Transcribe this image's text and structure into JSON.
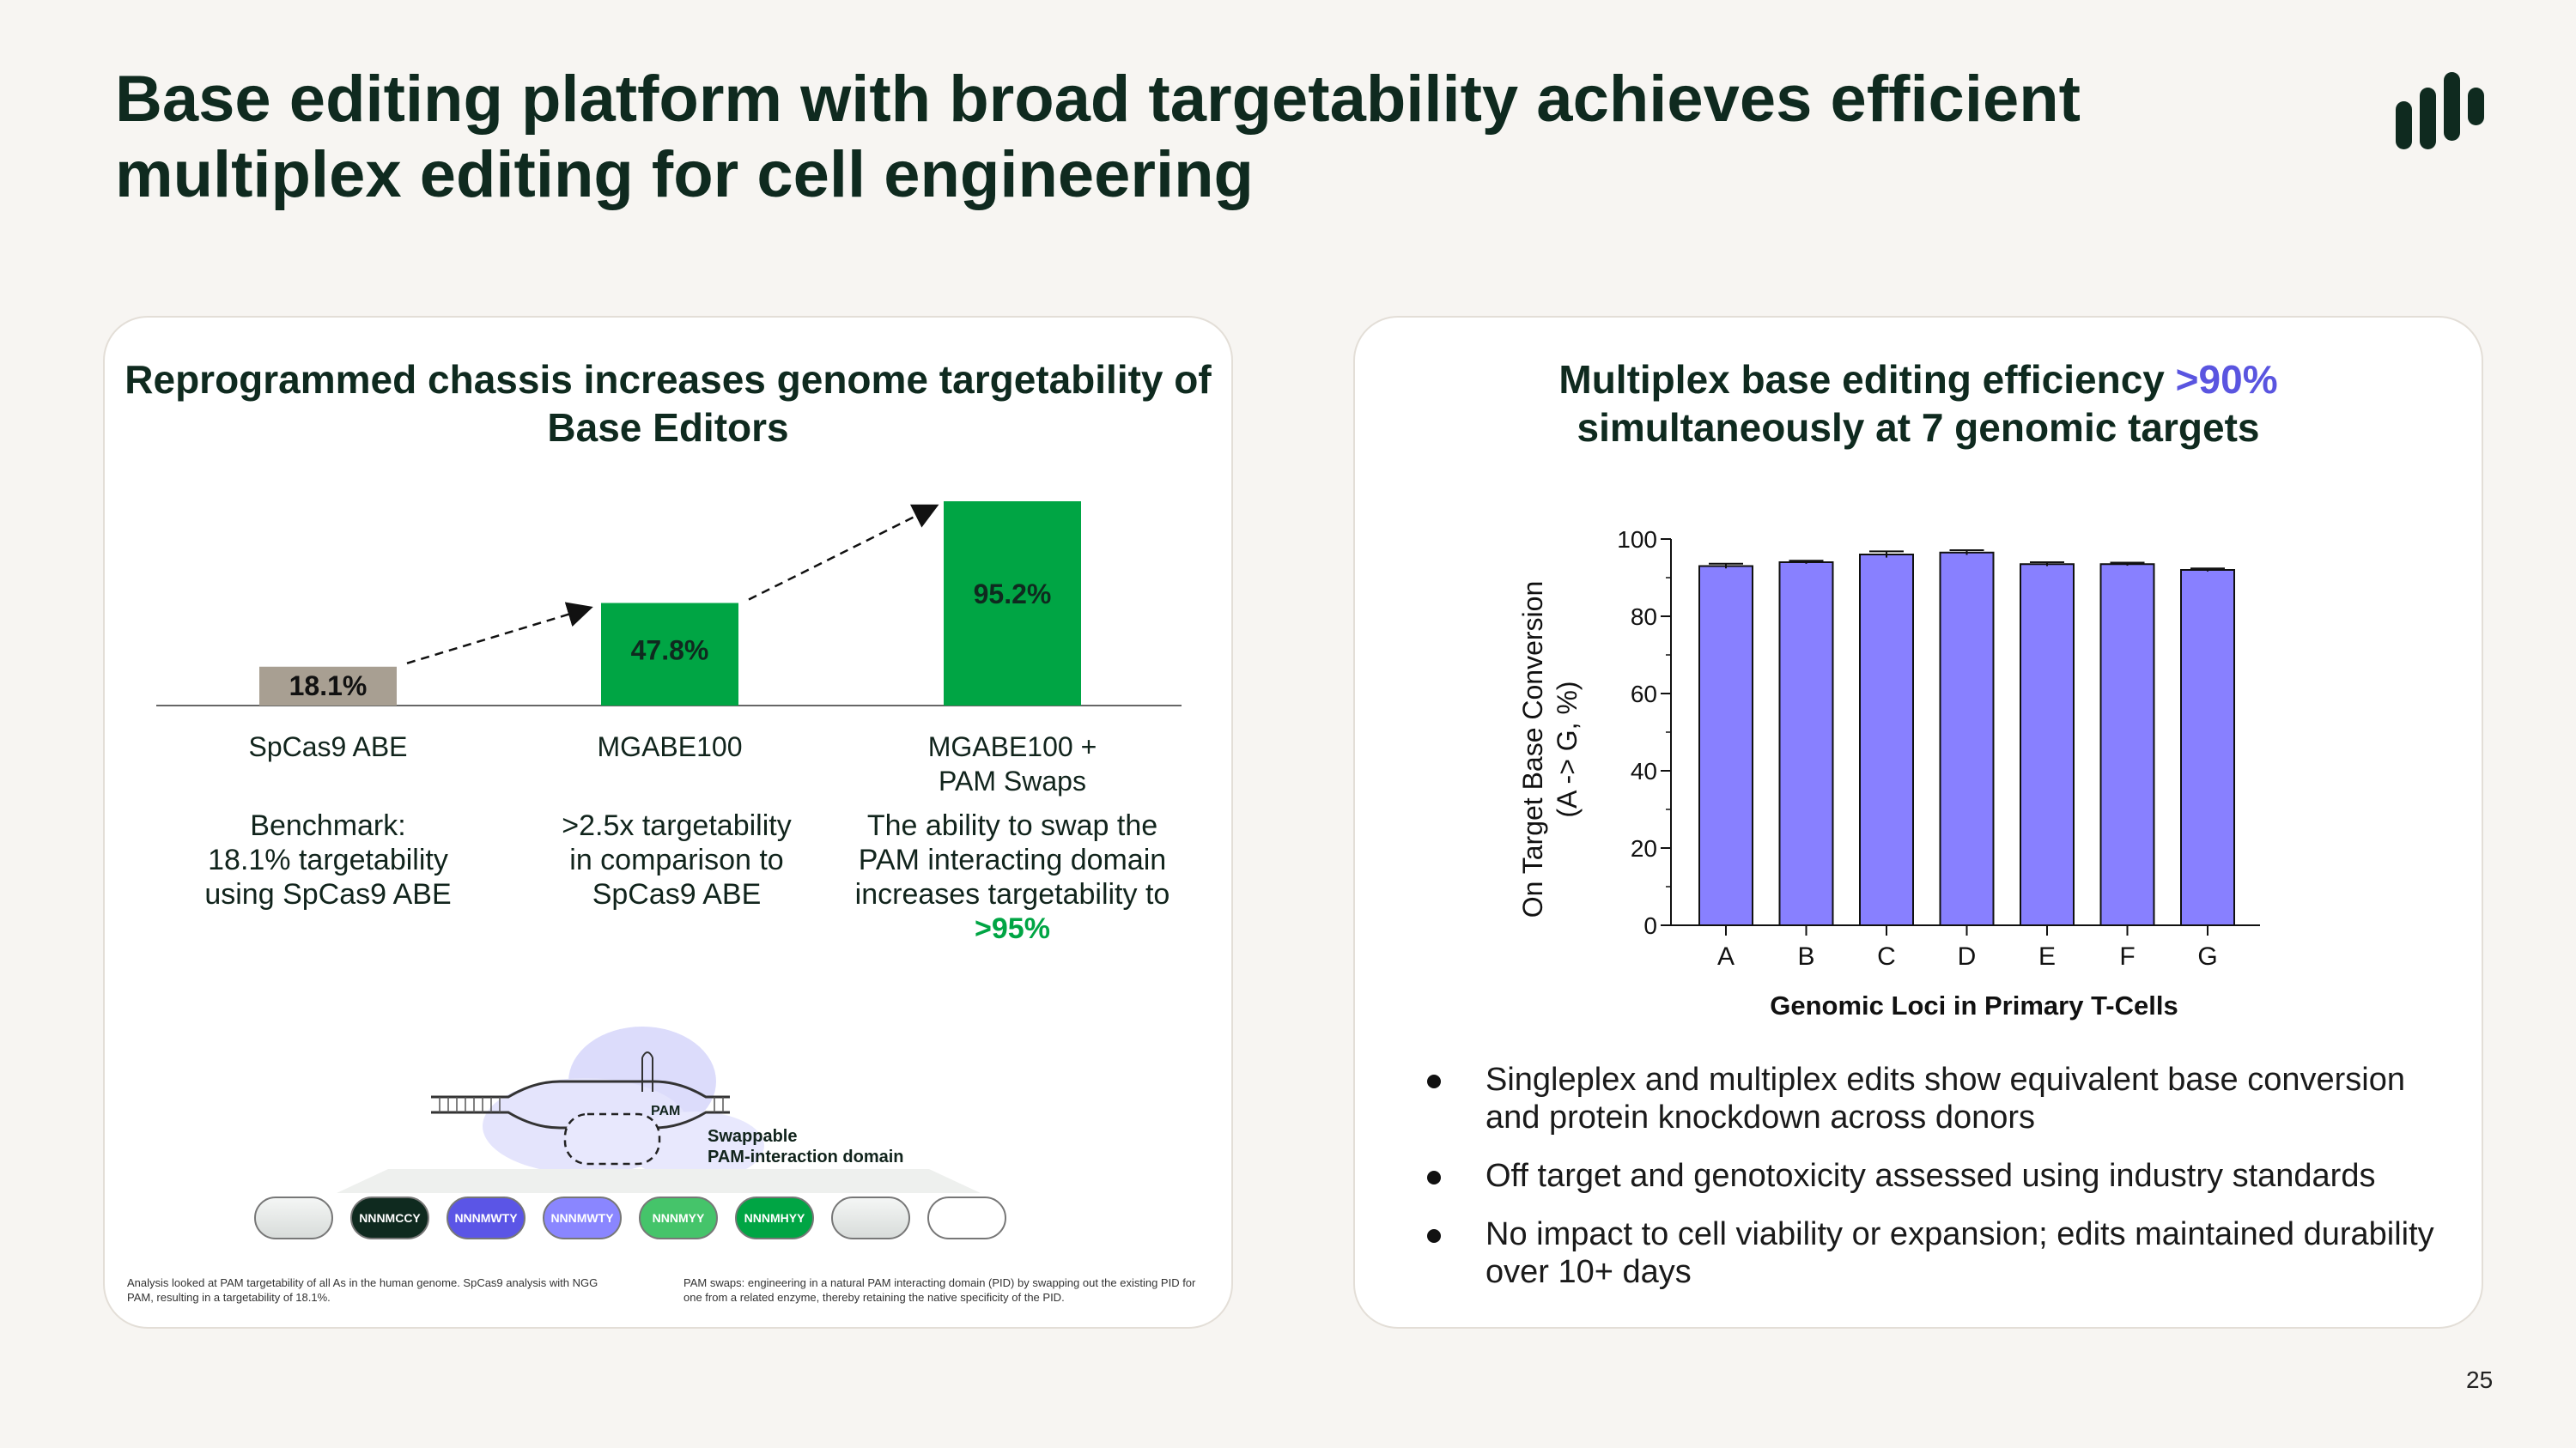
{
  "slide": {
    "title": "Base editing platform with broad targetability achieves efficient multiplex editing for cell engineering",
    "page_number": "25",
    "colors": {
      "dark_green": "#0f2a1f",
      "green": "#00a544",
      "taupe": "#a89f92",
      "purple": "#8880ff",
      "purple_text": "#5a55e0"
    }
  },
  "left_panel": {
    "title": "Reprogrammed chassis increases genome targetability of Base Editors",
    "columns": [
      {
        "category_lines": [
          "SpCas9 ABE"
        ],
        "desc_lines": [
          "Benchmark:",
          "18.1% targetability",
          "using SpCas9 ABE"
        ],
        "highlight": ""
      },
      {
        "category_lines": [
          "MGABE100"
        ],
        "desc_lines": [
          ">2.5x targetability",
          "in comparison to",
          "SpCas9 ABE"
        ],
        "highlight": ""
      },
      {
        "category_lines": [
          "MGABE100 +",
          "PAM Swaps"
        ],
        "desc_lines": [
          "The ability to swap the",
          "PAM interacting domain",
          "increases targetability to"
        ],
        "highlight": ">95%"
      }
    ],
    "diagram": {
      "pam_label": "PAM",
      "swappable_label": "Swappable",
      "domain_label": "PAM-interaction domain",
      "pills": [
        "",
        "NNNMCCY",
        "NNNMWTY",
        "NNNMWTY",
        "NNNMYY",
        "NNNMHYY",
        "",
        ""
      ]
    },
    "footnote_left": "Analysis looked at PAM targetability of all As in the human genome. SpCas9 analysis with NGG PAM, resulting in a targetability of 18.1%.",
    "footnote_right": "PAM swaps: engineering in a natural PAM interacting domain (PID) by swapping out the existing PID for one from a related enzyme, thereby retaining the native specificity of the PID."
  },
  "right_panel": {
    "title_main": "Multiplex base editing efficiency",
    "title_highlight": ">90%",
    "title_line2": "simultaneously at 7 genomic targets",
    "bullets": [
      "Singleplex and multiplex edits show equivalent base conversion and protein knockdown across donors",
      "Off target and genotoxicity assessed using industry standards",
      "No impact to cell viability or expansion; edits maintained durability over 10+ days"
    ]
  },
  "chart_data": [
    {
      "type": "bar",
      "title": "Reprogrammed chassis increases genome targetability of Base Editors",
      "categories": [
        "SpCas9 ABE",
        "MGABE100",
        "MGABE100 + PAM Swaps"
      ],
      "values": [
        18.1,
        47.8,
        95.2
      ],
      "value_labels": [
        "18.1%",
        "47.8%",
        "95.2%"
      ],
      "bar_colors": [
        "#a89f92",
        "#00a544",
        "#00a544"
      ],
      "ylim": [
        0,
        100
      ],
      "xlabel": "",
      "ylabel": ""
    },
    {
      "type": "bar",
      "title": "Multiplex base editing efficiency >90% simultaneously at 7 genomic targets",
      "categories": [
        "A",
        "B",
        "C",
        "D",
        "E",
        "F",
        "G"
      ],
      "values": [
        93,
        94,
        96,
        96.5,
        93.5,
        93.5,
        92
      ],
      "errors": [
        0.6,
        0.4,
        0.8,
        0.6,
        0.5,
        0.4,
        0.4
      ],
      "yticks": [
        "0",
        "20",
        "40",
        "60",
        "80",
        "100"
      ],
      "ylim": [
        0,
        100
      ],
      "xlabel": "Genomic Loci in Primary T-Cells",
      "ylabel_lines": [
        "On Target Base Conversion",
        "(A -> G, %)"
      ],
      "bar_color": "#8880ff"
    }
  ]
}
